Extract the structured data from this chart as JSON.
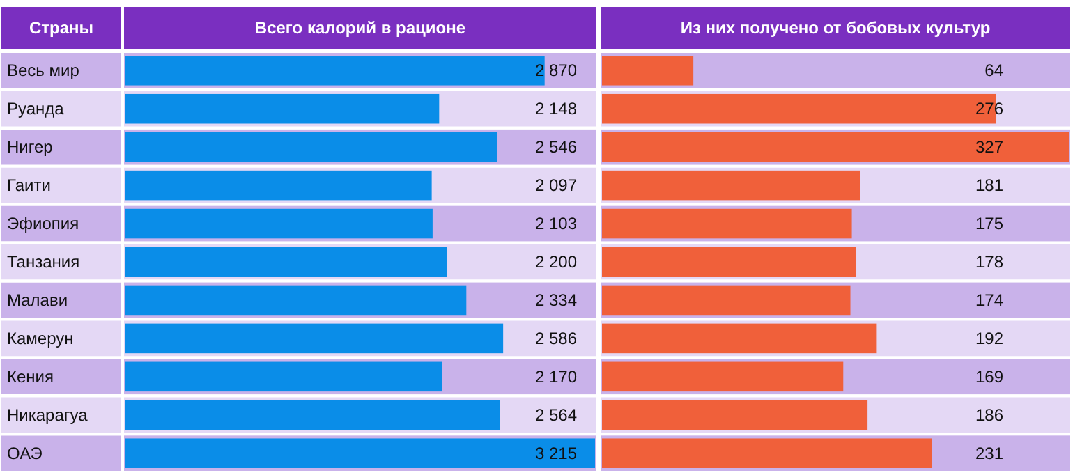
{
  "chart_data": [
    {
      "type": "bar",
      "orientation": "horizontal",
      "title": "Всего калорий в рационе",
      "ylabel": "Страны",
      "categories": [
        "Весь мир",
        "Руанда",
        "Нигер",
        "Гаити",
        "Эфиопия",
        "Танзания",
        "Малави",
        "Камерун",
        "Кения",
        "Никарагуа",
        "ОАЭ"
      ],
      "series": [
        {
          "color": "#0a8de8",
          "values": [
            2870,
            2148,
            2546,
            2097,
            2103,
            2200,
            2334,
            2586,
            2170,
            2564,
            3215
          ],
          "value_labels": [
            "2 870",
            "2 148",
            "2 546",
            "2 097",
            "2 103",
            "2 200",
            "2 334",
            "2 586",
            "2 170",
            "2 564",
            "3 215"
          ]
        }
      ],
      "bands": [
        {
          "axis": "y",
          "from": "Весь мир",
          "to": "Весь мир",
          "color": "#c9b2ea"
        },
        {
          "axis": "y",
          "from": "Нигер",
          "to": "Нигер",
          "color": "#c9b2ea"
        },
        {
          "axis": "y",
          "from": "Эфиопия",
          "to": "Эфиопия",
          "color": "#c9b2ea"
        },
        {
          "axis": "y",
          "from": "Малави",
          "to": "Малави",
          "color": "#c9b2ea"
        },
        {
          "axis": "y",
          "from": "Кения",
          "to": "Кения",
          "color": "#c9b2ea"
        },
        {
          "axis": "y",
          "from": "ОАЭ",
          "to": "ОАЭ",
          "color": "#c9b2ea"
        }
      ]
    },
    {
      "type": "bar",
      "orientation": "horizontal",
      "title": "Из них получено от бобовых культур",
      "categories": [
        "Весь мир",
        "Руанда",
        "Нигер",
        "Гаити",
        "Эфиопия",
        "Танзания",
        "Малави",
        "Камерун",
        "Кения",
        "Никарагуа",
        "ОАЭ"
      ],
      "tick_labels": false,
      "series": [
        {
          "color": "#f0603a",
          "values": [
            64,
            276,
            327,
            181,
            175,
            178,
            174,
            192,
            169,
            186,
            231
          ]
        }
      ],
      "data_labels": true,
      "bands": [
        {
          "axis": "y",
          "from": "Весь мир",
          "to": "Весь мир",
          "color": "#c9b2ea"
        },
        {
          "axis": "y",
          "from": "Нигер",
          "to": "Нигер",
          "color": "#c9b2ea"
        },
        {
          "axis": "y",
          "from": "Эфиопия",
          "to": "Эфиопия",
          "color": "#c9b2ea"
        },
        {
          "axis": "y",
          "from": "Малави",
          "to": "Малави",
          "color": "#c9b2ea"
        },
        {
          "axis": "y",
          "from": "Кения",
          "to": "Кения",
          "color": "#c9b2ea"
        },
        {
          "axis": "y",
          "from": "ОАЭ",
          "to": "ОАЭ",
          "color": "#c9b2ea"
        }
      ]
    }
  ]
}
